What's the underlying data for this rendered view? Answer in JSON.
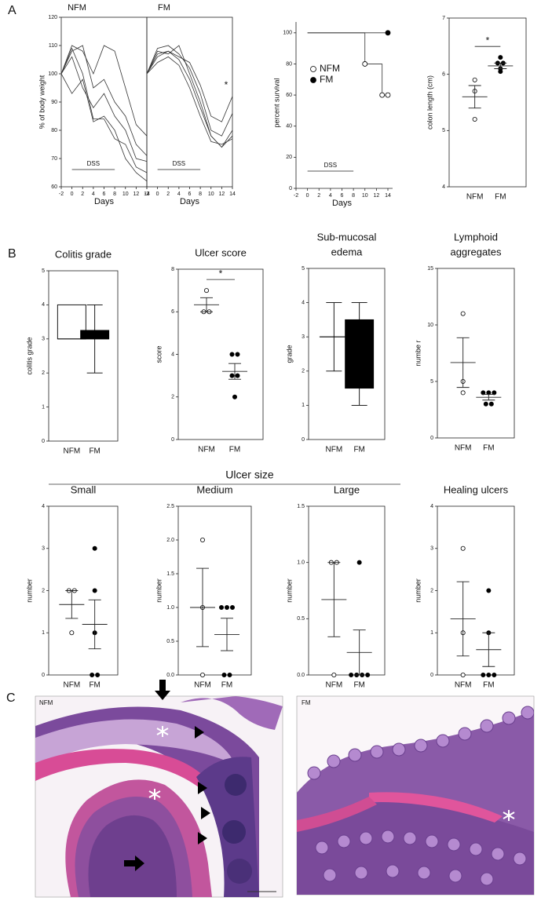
{
  "panel_labels": [
    "A",
    "B",
    "C"
  ],
  "ulcer_size_label": "Ulcer size",
  "histology": [
    {
      "label": "NFM"
    },
    {
      "label": "FM"
    }
  ],
  "chart_data": [
    {
      "type": "line",
      "title": "NFM",
      "ylabel": "% of body weight",
      "xlabel": "Days",
      "x": [
        -2,
        0,
        2,
        4,
        6,
        8,
        10,
        12,
        14
      ],
      "xlim": [
        -2,
        14
      ],
      "xticks": [
        -2,
        0,
        2,
        4,
        6,
        8,
        10,
        12,
        14
      ],
      "ylim": [
        60,
        120
      ],
      "yticks": [
        60,
        70,
        80,
        90,
        100,
        110,
        120
      ],
      "dss": {
        "label": "DSS",
        "days": [
          0,
          8
        ]
      },
      "series": [
        {
          "values": [
            100,
            110,
            108,
            100,
            110,
            108,
            95,
            82,
            78
          ]
        },
        {
          "values": [
            100,
            108,
            110,
            95,
            98,
            90,
            85,
            75,
            71
          ]
        },
        {
          "values": [
            100,
            106,
            95,
            88,
            93,
            85,
            80,
            70,
            69
          ]
        },
        {
          "values": [
            100,
            93,
            98,
            83,
            85,
            80,
            70,
            65,
            62
          ]
        },
        {
          "values": [
            100,
            109,
            100,
            84,
            84,
            77,
            75,
            67,
            65
          ]
        }
      ]
    },
    {
      "type": "line",
      "title": "FM",
      "xlabel": "Days",
      "annotation": "*",
      "x": [
        -2,
        0,
        2,
        4,
        6,
        8,
        10,
        12,
        14
      ],
      "xlim": [
        -2,
        14
      ],
      "xticks": [
        -2,
        0,
        2,
        4,
        6,
        8,
        10,
        12,
        14
      ],
      "ylim": [
        60,
        120
      ],
      "dss": {
        "label": "DSS",
        "days": [
          0,
          8
        ]
      },
      "series": [
        {
          "values": [
            100,
            107,
            108,
            106,
            104,
            96,
            85,
            83,
            92
          ]
        },
        {
          "values": [
            100,
            109,
            110,
            107,
            102,
            93,
            80,
            78,
            86
          ]
        },
        {
          "values": [
            100,
            106,
            108,
            105,
            98,
            88,
            78,
            74,
            80
          ]
        },
        {
          "values": [
            100,
            108,
            107,
            110,
            100,
            90,
            78,
            74,
            78
          ]
        },
        {
          "values": [
            100,
            104,
            106,
            103,
            95,
            85,
            76,
            75,
            77
          ]
        }
      ]
    },
    {
      "type": "step",
      "ylabel": "percent survival",
      "xlabel": "Days",
      "xlim": [
        -2,
        14
      ],
      "xticks": [
        -2,
        0,
        2,
        4,
        6,
        8,
        10,
        12,
        14
      ],
      "ylim": [
        0,
        110
      ],
      "yticks": [
        0,
        20,
        40,
        60,
        80,
        100
      ],
      "dss": {
        "label": "DSS",
        "days": [
          0,
          8
        ]
      },
      "series": [
        {
          "name": "NFM",
          "color": "#ffffff",
          "x": [
            0,
            10,
            13,
            14
          ],
          "values": [
            100,
            80,
            60,
            60
          ]
        },
        {
          "name": "FM",
          "color": "#000000",
          "x": [
            0,
            14
          ],
          "values": [
            100,
            100
          ]
        }
      ]
    },
    {
      "type": "strip",
      "ylabel": "colon length (cm)",
      "categories": [
        "NFM",
        "FM"
      ],
      "ylim": [
        4,
        7
      ],
      "yticks": [
        4,
        5,
        6,
        7
      ],
      "significance": "*",
      "colors": [
        "#ffffff",
        "#000000"
      ],
      "points": [
        [
          5.9,
          5.7,
          5.2
        ],
        [
          6.3,
          6.2,
          6.2,
          6.1,
          6.05
        ]
      ],
      "means": [
        5.6,
        6.15
      ],
      "errors": [
        0.2,
        0.05
      ]
    },
    {
      "type": "box",
      "title": "Colitis grade",
      "ylabel": "colitis grade",
      "categories": [
        "NFM",
        "FM"
      ],
      "ylim": [
        0,
        5
      ],
      "yticks": [
        0,
        1,
        2,
        3,
        4,
        5
      ],
      "colors": [
        "#ffffff",
        "#000000"
      ],
      "boxes": [
        {
          "min": 3,
          "q1": 3,
          "median": 3,
          "q3": 4,
          "max": 4
        },
        {
          "min": 2,
          "q1": 3,
          "median": 3,
          "q3": 3.25,
          "max": 4
        }
      ]
    },
    {
      "type": "strip",
      "title": "Ulcer score",
      "ylabel": "score",
      "categories": [
        "NFM",
        "FM"
      ],
      "ylim": [
        0,
        8
      ],
      "yticks": [
        0,
        2,
        4,
        6,
        8
      ],
      "significance": "*",
      "colors": [
        "#ffffff",
        "#000000"
      ],
      "points": [
        [
          7,
          6,
          6
        ],
        [
          4,
          4,
          3,
          3,
          2
        ]
      ],
      "means": [
        6.33,
        3.2
      ],
      "errors": [
        0.33,
        0.37
      ]
    },
    {
      "type": "box",
      "title": [
        "Sub-mucosal",
        "edema"
      ],
      "ylabel": "grade",
      "categories": [
        "NFM",
        "FM"
      ],
      "ylim": [
        0,
        5
      ],
      "yticks": [
        0,
        1,
        2,
        3,
        4,
        5
      ],
      "colors": [
        "#ffffff",
        "#000000"
      ],
      "boxes": [
        {
          "min": 2,
          "q1": 3,
          "median": 3,
          "q3": 3,
          "max": 4
        },
        {
          "min": 1,
          "q1": 1.5,
          "median": 1.5,
          "q3": 3.5,
          "max": 4
        }
      ]
    },
    {
      "type": "strip",
      "title": [
        "Lymphoid",
        "aggregates"
      ],
      "ylabel": "numbe r",
      "categories": [
        "NFM",
        "FM"
      ],
      "ylim": [
        0,
        15
      ],
      "yticks": [
        0,
        5,
        10,
        15
      ],
      "colors": [
        "#ffffff",
        "#000000"
      ],
      "points": [
        [
          11,
          5,
          4
        ],
        [
          4,
          4,
          4,
          3,
          3
        ]
      ],
      "means": [
        6.67,
        3.6
      ],
      "errors": [
        2.2,
        0.25
      ]
    },
    {
      "type": "strip",
      "title": "Small",
      "ylabel": "number",
      "categories": [
        "NFM",
        "FM"
      ],
      "ylim": [
        0,
        4
      ],
      "yticks": [
        0,
        1,
        2,
        3,
        4
      ],
      "colors": [
        "#ffffff",
        "#000000"
      ],
      "points": [
        [
          2,
          2,
          1
        ],
        [
          3,
          2,
          1,
          0,
          0
        ]
      ],
      "means": [
        1.67,
        1.2
      ],
      "errors": [
        0.33,
        0.58
      ]
    },
    {
      "type": "strip",
      "title": "Medium",
      "ylabel": "number",
      "categories": [
        "NFM",
        "FM"
      ],
      "ylim": [
        0,
        2.5
      ],
      "yticks": [
        {
          "value": 0,
          "label": "0.0"
        },
        0.5,
        {
          "value": 1,
          "label": "1.0"
        },
        1.5,
        {
          "value": 2,
          "label": "2.0"
        },
        2.5
      ],
      "colors": [
        "#ffffff",
        "#000000"
      ],
      "points": [
        [
          2,
          1,
          0
        ],
        [
          1,
          1,
          1,
          0,
          0
        ]
      ],
      "means": [
        1,
        0.6
      ],
      "errors": [
        0.58,
        0.24
      ]
    },
    {
      "type": "strip",
      "title": "Large",
      "ylabel": "number",
      "categories": [
        "NFM",
        "FM"
      ],
      "ylim": [
        0,
        1.5
      ],
      "yticks": [
        {
          "value": 0,
          "label": "0.0"
        },
        0.5,
        {
          "value": 1,
          "label": "1.0"
        },
        1.5
      ],
      "colors": [
        "#ffffff",
        "#000000"
      ],
      "points": [
        [
          1,
          1,
          0
        ],
        [
          1,
          0,
          0,
          0,
          0
        ]
      ],
      "means": [
        0.67,
        0.2
      ],
      "errors": [
        0.33,
        0.2
      ]
    },
    {
      "type": "strip",
      "title": "Healing ulcers",
      "ylabel": "number",
      "categories": [
        "NFM",
        "FM"
      ],
      "ylim": [
        0,
        4
      ],
      "yticks": [
        0,
        1,
        2,
        3,
        4
      ],
      "colors": [
        "#ffffff",
        "#000000"
      ],
      "points": [
        [
          3,
          1,
          0
        ],
        [
          2,
          1,
          0,
          0,
          0
        ]
      ],
      "means": [
        1.33,
        0.6
      ],
      "errors": [
        0.88,
        0.4
      ]
    }
  ]
}
